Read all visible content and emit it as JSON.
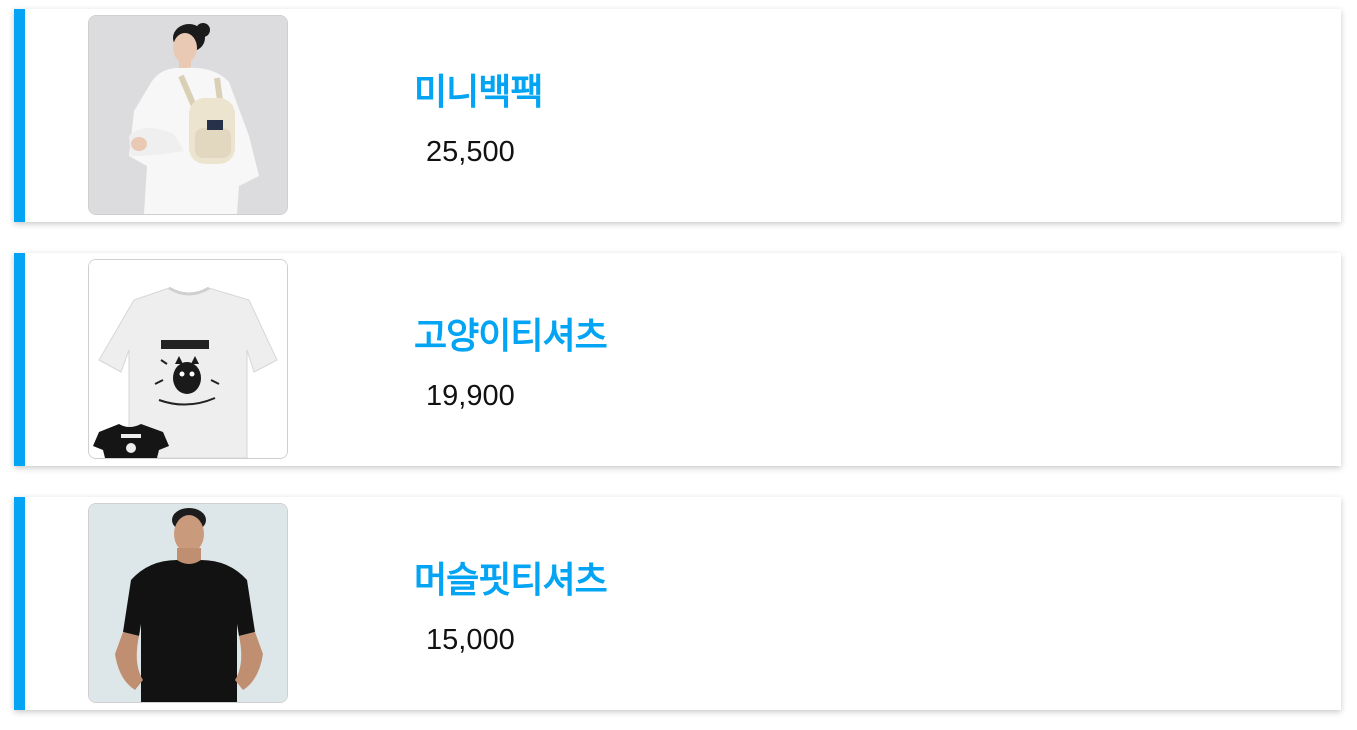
{
  "accent_color": "#03a4f4",
  "products": [
    {
      "name": "미니백팩",
      "price": "25,500",
      "image": "woman-with-mini-backpack-photo"
    },
    {
      "name": "고양이티셔츠",
      "price": "19,900",
      "image": "cat-print-tshirt-photo"
    },
    {
      "name": "머슬핏티셔츠",
      "price": "15,000",
      "image": "man-in-black-muscle-fit-tshirt-photo"
    }
  ]
}
